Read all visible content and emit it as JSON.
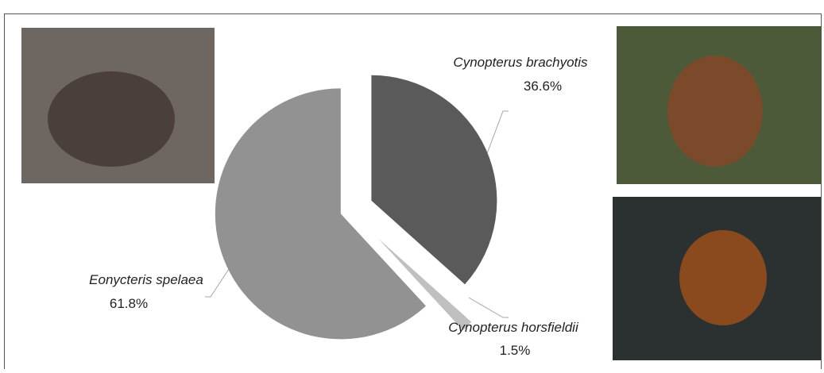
{
  "chart_data": {
    "type": "pie",
    "categories": [
      "Cynopterus brachyotis",
      "Cynopterus horsfieldii",
      "Eonycteris spelaea"
    ],
    "values": [
      36.6,
      1.5,
      61.8
    ],
    "value_labels": [
      "36.6%",
      "1.5%",
      "61.8%"
    ],
    "colors": [
      "#5a5a5a",
      "#c0c0c0",
      "#929292"
    ]
  }
}
